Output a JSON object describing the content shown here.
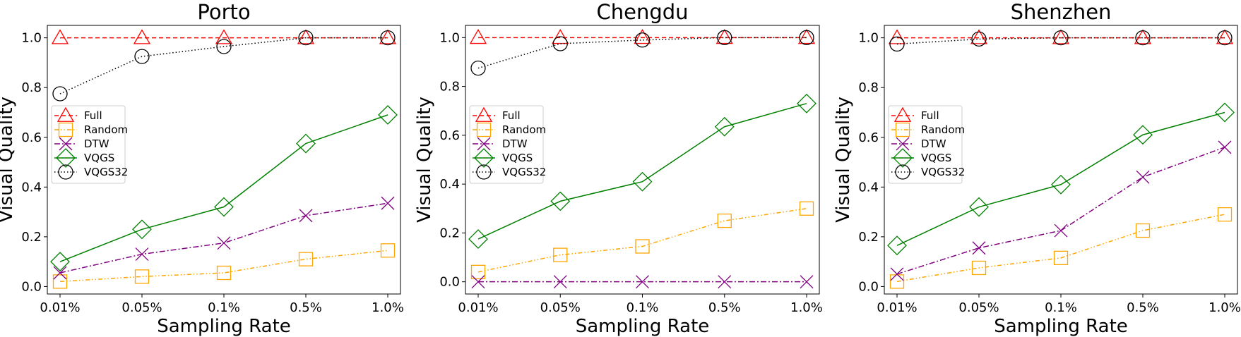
{
  "chart_data": [
    {
      "type": "line",
      "title": "Porto",
      "xlabel": "Sampling Rate",
      "ylabel": "Visual Quality",
      "categories": [
        "0.01%",
        "0.05%",
        "0.1%",
        "0.5%",
        "1.0%"
      ],
      "ylim": [
        -0.03,
        1.05
      ],
      "yticks": [
        "0.0",
        "0.2",
        "0.4",
        "0.6",
        "0.8",
        "1.0"
      ],
      "legend_position": "center-left",
      "series": [
        {
          "name": "Full",
          "values": [
            1.0,
            1.0,
            1.0,
            1.0,
            1.0
          ]
        },
        {
          "name": "Random",
          "values": [
            0.02,
            0.04,
            0.055,
            0.11,
            0.145
          ]
        },
        {
          "name": "DTW",
          "values": [
            0.055,
            0.13,
            0.175,
            0.285,
            0.335
          ]
        },
        {
          "name": "VQGS",
          "values": [
            0.1,
            0.23,
            0.32,
            0.575,
            0.69
          ]
        },
        {
          "name": "VQGS32",
          "values": [
            0.775,
            0.925,
            0.965,
            1.0,
            1.0
          ]
        }
      ]
    },
    {
      "type": "line",
      "title": "Chengdu",
      "xlabel": "Sampling Rate",
      "ylabel": "Visual Quality",
      "categories": [
        "0.01%",
        "0.05%",
        "0.1%",
        "0.5%",
        "1.0%"
      ],
      "ylim": [
        -0.05,
        1.05
      ],
      "yticks": [
        "0.0",
        "0.2",
        "0.4",
        "0.6",
        "0.8",
        "1.0"
      ],
      "legend_position": "center-left",
      "series": [
        {
          "name": "Full",
          "values": [
            1.0,
            1.0,
            1.0,
            1.0,
            1.0
          ]
        },
        {
          "name": "Random",
          "values": [
            0.04,
            0.11,
            0.145,
            0.25,
            0.3
          ]
        },
        {
          "name": "DTW",
          "values": [
            0.0,
            0.0,
            0.0,
            0.0,
            0.0
          ]
        },
        {
          "name": "VQGS",
          "values": [
            0.175,
            0.33,
            0.41,
            0.635,
            0.73
          ]
        },
        {
          "name": "VQGS32",
          "values": [
            0.875,
            0.975,
            0.99,
            1.0,
            1.0
          ]
        }
      ]
    },
    {
      "type": "line",
      "title": "Shenzhen",
      "xlabel": "Sampling Rate",
      "ylabel": "Visual Quality",
      "categories": [
        "0.01%",
        "0.05%",
        "0.1%",
        "0.5%",
        "1.0%"
      ],
      "ylim": [
        -0.03,
        1.05
      ],
      "yticks": [
        "0.0",
        "0.2",
        "0.4",
        "0.6",
        "0.8",
        "1.0"
      ],
      "legend_position": "center-left",
      "series": [
        {
          "name": "Full",
          "values": [
            1.0,
            1.0,
            1.0,
            1.0,
            1.0
          ]
        },
        {
          "name": "Random",
          "values": [
            0.02,
            0.075,
            0.115,
            0.225,
            0.29
          ]
        },
        {
          "name": "DTW",
          "values": [
            0.05,
            0.155,
            0.225,
            0.44,
            0.56
          ]
        },
        {
          "name": "VQGS",
          "values": [
            0.165,
            0.32,
            0.41,
            0.61,
            0.7
          ]
        },
        {
          "name": "VQGS32",
          "values": [
            0.975,
            0.995,
            1.0,
            1.0,
            1.0
          ]
        }
      ]
    }
  ],
  "styles": {
    "Full": {
      "color": "#ff0000",
      "marker": "triangle",
      "dash": "6,4"
    },
    "Random": {
      "color": "#ffa500",
      "marker": "square",
      "dash": "6,3,1.5,3,1.5,3"
    },
    "DTW": {
      "color": "#800080",
      "marker": "x",
      "dash": "8,3,2,3"
    },
    "VQGS": {
      "color": "#008000",
      "marker": "diamond",
      "dash": ""
    },
    "VQGS32": {
      "color": "#000000",
      "marker": "circle",
      "dash": "1.5,3"
    }
  }
}
